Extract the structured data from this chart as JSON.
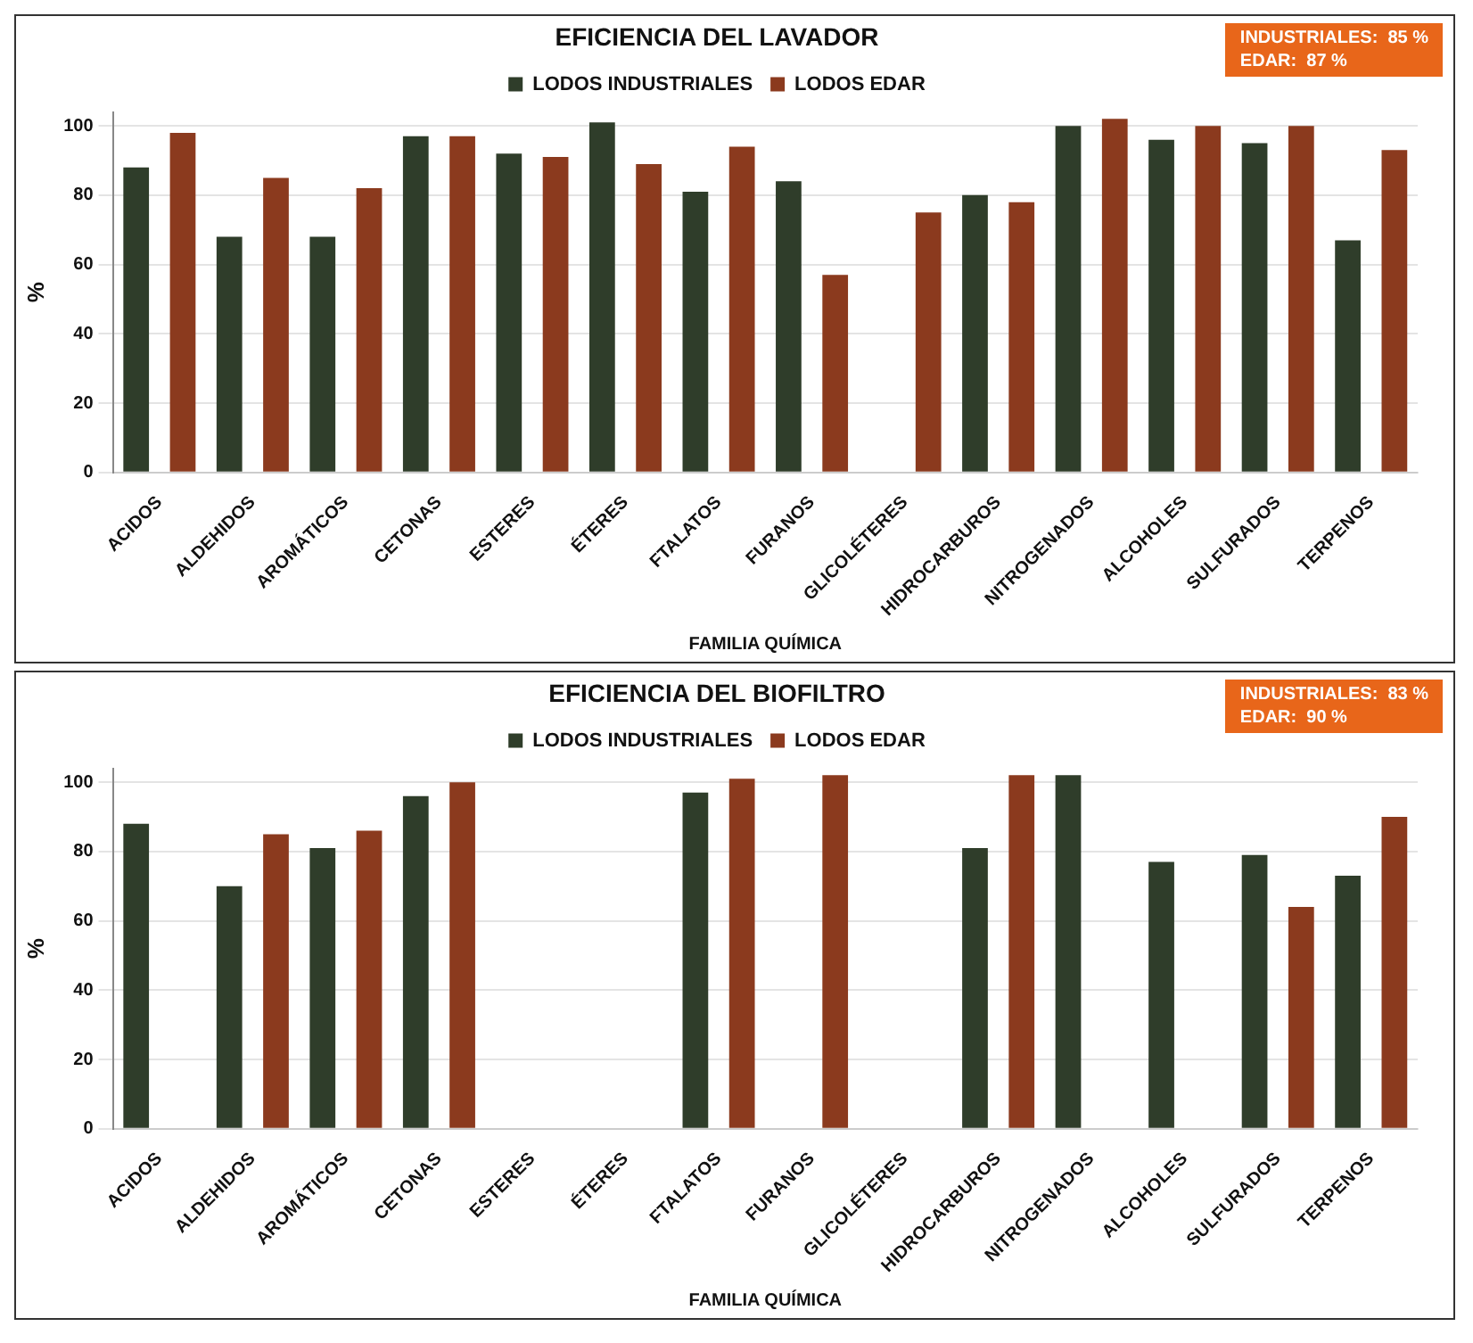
{
  "chart_data": [
    {
      "type": "bar",
      "title": "EFICIENCIA DEL LAVADOR",
      "xlabel": "FAMILIA QUÍMICA",
      "ylabel": "%",
      "annotations": [
        "INDUSTRIALES:  85 %",
        "EDAR:  87 %"
      ],
      "categories": [
        "ACIDOS",
        "ALDEHIDOS",
        "AROMÁTICOS",
        "CETONAS",
        "ESTERES",
        "ÉTERES",
        "FTALATOS",
        "FURANOS",
        "GLICOLÉTERES",
        "HIDROCARBUROS",
        "NITROGENADOS",
        "ALCOHOLES",
        "SULFURADOS",
        "TERPENOS"
      ],
      "series": [
        {
          "name": "LODOS INDUSTRIALES",
          "color": "#2f3d2a",
          "values": [
            88,
            68,
            68,
            97,
            92,
            101,
            81,
            84,
            null,
            80,
            100,
            96,
            95,
            67
          ]
        },
        {
          "name": "LODOS EDAR",
          "color": "#8b3a1e",
          "values": [
            98,
            85,
            82,
            97,
            91,
            89,
            94,
            57,
            75,
            78,
            102,
            100,
            100,
            93
          ]
        }
      ],
      "ylim": [
        0,
        104
      ],
      "yticks": [
        0,
        20,
        40,
        60,
        80,
        100
      ],
      "grid": "y",
      "legend": "top"
    },
    {
      "type": "bar",
      "title": "EFICIENCIA DEL BIOFILTRO",
      "xlabel": "FAMILIA QUÍMICA",
      "ylabel": "%",
      "annotations": [
        "INDUSTRIALES:  83 %",
        "EDAR:  90 %"
      ],
      "categories": [
        "ACIDOS",
        "ALDEHIDOS",
        "AROMÁTICOS",
        "CETONAS",
        "ESTERES",
        "ÉTERES",
        "FTALATOS",
        "FURANOS",
        "GLICOLÉTERES",
        "HIDROCARBUROS",
        "NITROGENADOS",
        "ALCOHOLES",
        "SULFURADOS",
        "TERPENOS"
      ],
      "series": [
        {
          "name": "LODOS INDUSTRIALES",
          "color": "#2f3d2a",
          "values": [
            88,
            70,
            81,
            96,
            null,
            null,
            97,
            null,
            null,
            81,
            102,
            77,
            79,
            73
          ]
        },
        {
          "name": "LODOS EDAR",
          "color": "#8b3a1e",
          "values": [
            null,
            85,
            86,
            100,
            null,
            null,
            101,
            102,
            null,
            102,
            null,
            null,
            64,
            90
          ]
        }
      ],
      "ylim": [
        0,
        104
      ],
      "yticks": [
        0,
        20,
        40,
        60,
        80,
        100
      ],
      "grid": "y",
      "legend": "top"
    }
  ]
}
